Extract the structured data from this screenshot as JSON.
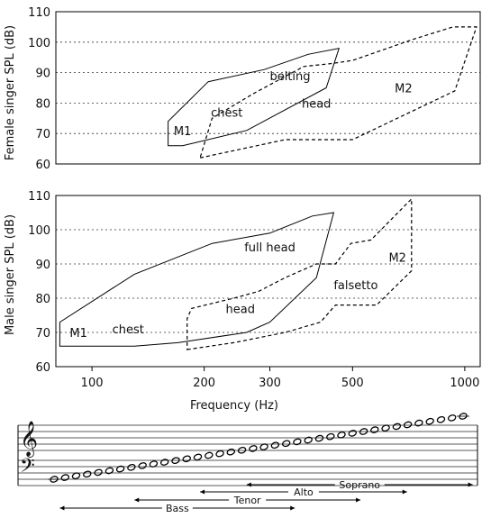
{
  "chart_data": [
    {
      "type": "area",
      "name": "female",
      "ylabel": "Female singer SPL (dB)",
      "xlabel": "",
      "xscale": "log",
      "xlim": [
        80,
        1100
      ],
      "ylim": [
        60,
        110
      ],
      "yticks": [
        60,
        70,
        80,
        90,
        100,
        110
      ],
      "grid": "horizontal-dotted",
      "series": [
        {
          "name": "M1",
          "style": "solid",
          "points": [
            [
              160,
              66
            ],
            [
              175,
              66
            ],
            [
              260,
              71
            ],
            [
              425,
              85
            ],
            [
              460,
              98
            ],
            [
              380,
              96
            ],
            [
              290,
              91
            ],
            [
              205,
              87
            ],
            [
              160,
              74
            ]
          ]
        },
        {
          "name": "M2",
          "style": "dashed",
          "points": [
            [
              195,
              62
            ],
            [
              330,
              68
            ],
            [
              500,
              68
            ],
            [
              940,
              84
            ],
            [
              1075,
              105
            ],
            [
              930,
              105
            ],
            [
              730,
              101
            ],
            [
              500,
              94
            ],
            [
              440,
              93
            ],
            [
              370,
              92
            ],
            [
              270,
              83
            ],
            [
              210,
              75
            ],
            [
              195,
              62
            ]
          ]
        }
      ],
      "annotations": [
        {
          "text": "M1",
          "x": 175,
          "y": 71
        },
        {
          "text": "chest",
          "x": 230,
          "y": 77
        },
        {
          "text": "belting",
          "x": 340,
          "y": 89
        },
        {
          "text": "head",
          "x": 400,
          "y": 80
        },
        {
          "text": "M2",
          "x": 685,
          "y": 85
        }
      ]
    },
    {
      "type": "area",
      "name": "male",
      "ylabel": "Male singer SPL (dB)",
      "xlabel": "Frequency  (Hz)",
      "xscale": "log",
      "xlim": [
        80,
        1100
      ],
      "ylim": [
        60,
        110
      ],
      "yticks": [
        60,
        70,
        80,
        90,
        100,
        110
      ],
      "xticks": [
        100,
        200,
        300,
        500,
        1000
      ],
      "grid": "horizontal-dotted",
      "series": [
        {
          "name": "M1",
          "style": "solid",
          "points": [
            [
              82,
              66
            ],
            [
              130,
              66
            ],
            [
              170,
              67
            ],
            [
              260,
              70
            ],
            [
              300,
              73
            ],
            [
              400,
              86
            ],
            [
              445,
              105
            ],
            [
              390,
              104
            ],
            [
              300,
              99
            ],
            [
              210,
              96
            ],
            [
              130,
              87
            ],
            [
              82,
              73
            ]
          ]
        },
        {
          "name": "M2",
          "style": "dashed",
          "points": [
            [
              180,
              65
            ],
            [
              240,
              67
            ],
            [
              330,
              70
            ],
            [
              410,
              73
            ],
            [
              450,
              78
            ],
            [
              580,
              78
            ],
            [
              720,
              88
            ],
            [
              720,
              109
            ],
            [
              560,
              97
            ],
            [
              495,
              96
            ],
            [
              450,
              90
            ],
            [
              400,
              90
            ],
            [
              330,
              86
            ],
            [
              280,
              82
            ],
            [
              240,
              80
            ],
            [
              185,
              77
            ],
            [
              180,
              74
            ],
            [
              180,
              65
            ]
          ]
        }
      ],
      "annotations": [
        {
          "text": "M1",
          "x": 92,
          "y": 70
        },
        {
          "text": "chest",
          "x": 125,
          "y": 71
        },
        {
          "text": "full head",
          "x": 300,
          "y": 95
        },
        {
          "text": "head",
          "x": 250,
          "y": 77
        },
        {
          "text": "falsetto",
          "x": 510,
          "y": 84
        },
        {
          "text": "M2",
          "x": 660,
          "y": 92
        }
      ]
    }
  ],
  "staff": {
    "note_count": 38,
    "ranges": [
      {
        "label": "Soprano",
        "from": 260,
        "to": 1050
      },
      {
        "label": "Alto",
        "from": 195,
        "to": 700
      },
      {
        "label": "Tenor",
        "from": 130,
        "to": 525
      },
      {
        "label": "Bass",
        "from": 82,
        "to": 350
      }
    ]
  }
}
